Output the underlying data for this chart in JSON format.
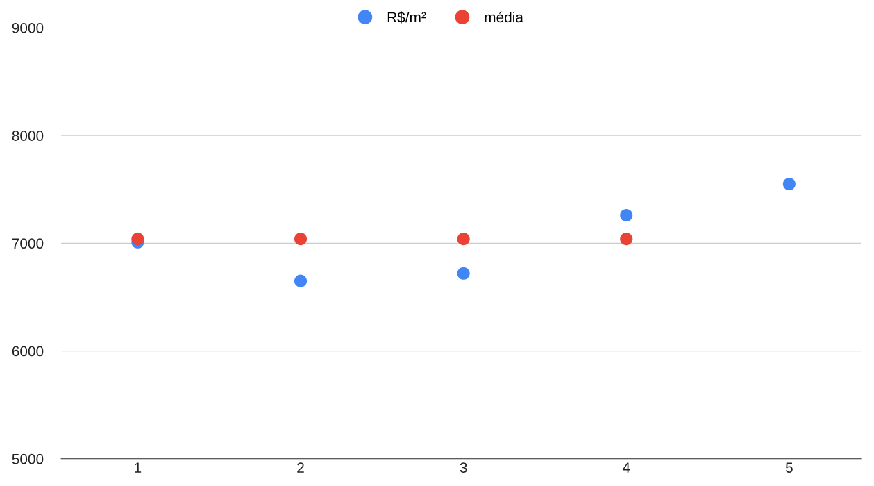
{
  "chart_data": {
    "type": "scatter",
    "x": [
      1,
      2,
      3,
      4,
      5
    ],
    "series": [
      {
        "name": "R$/m²",
        "color": "#4285f4",
        "values": [
          7010,
          6650,
          6720,
          7260,
          7550
        ]
      },
      {
        "name": "média",
        "color": "#ea4335",
        "values": [
          7040,
          7040,
          7040,
          7040,
          null
        ]
      }
    ],
    "xlim": [
      0.53,
      5.44
    ],
    "xticks": [
      1,
      2,
      3,
      4,
      5
    ],
    "ylim": [
      5000,
      9000
    ],
    "yticks": [
      5000,
      6000,
      7000,
      8000,
      9000
    ],
    "grid": "y",
    "legend": "top",
    "marker": "circle"
  }
}
